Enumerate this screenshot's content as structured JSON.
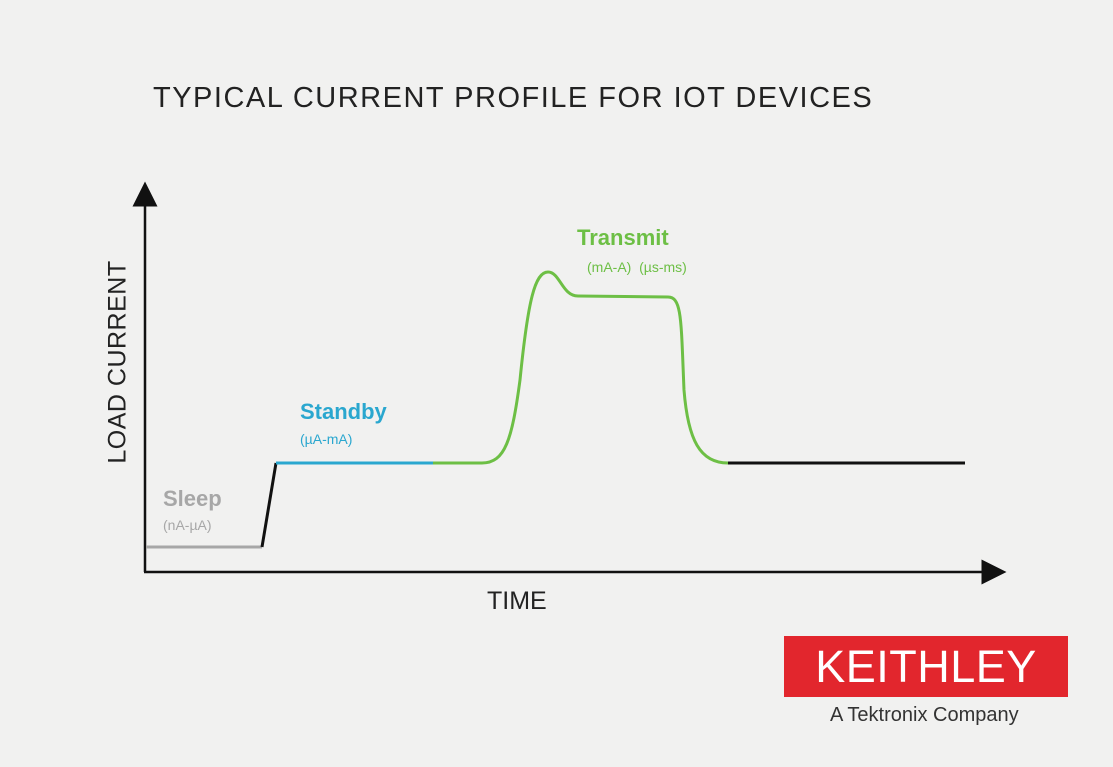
{
  "title": "TYPICAL CURRENT PROFILE FOR IOT DEVICES",
  "axes": {
    "x_label": "TIME",
    "y_label": "LOAD CURRENT"
  },
  "phases": [
    {
      "name": "Sleep",
      "range": "(nA-µA)",
      "color": "#a7a7a7"
    },
    {
      "name": "Standby",
      "range": "(µA-mA)",
      "color": "#2aa7cf"
    },
    {
      "name": "Transmit",
      "range": "(mA-A)  (µs-ms)",
      "color": "#6dbf45"
    }
  ],
  "transition_color": "#111111",
  "logo": {
    "text": "KEITHLEY",
    "tagline": "A Tektronix Company",
    "color": "#e2262d"
  }
}
